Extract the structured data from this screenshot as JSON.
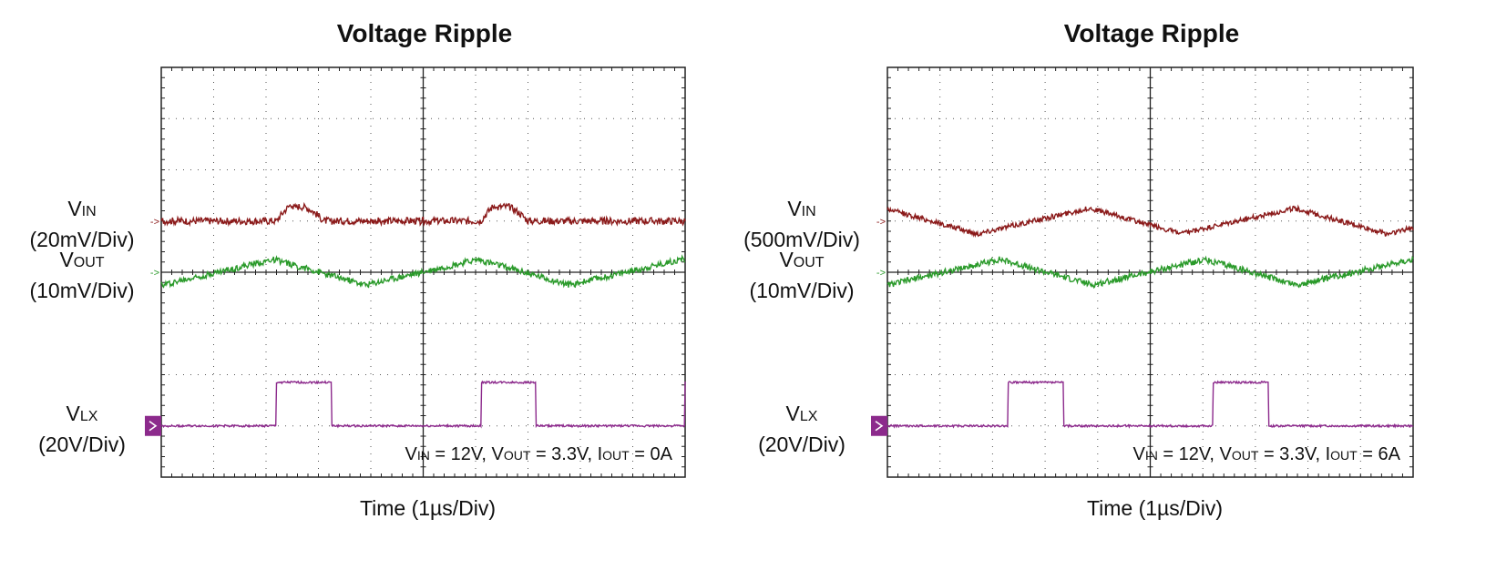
{
  "chart_data": [
    {
      "type": "line",
      "title": "Voltage Ripple",
      "xlabel": "Time (1µs/Div)",
      "divisions": {
        "x": 10,
        "y": 8
      },
      "annotation": {
        "parts": [
          {
            "t": "V",
            "sub": "IN",
            "rest": " = 12V, "
          },
          {
            "t": "V",
            "sub": "OUT",
            "rest": " = 3.3V, "
          },
          {
            "t": "I",
            "sub": "OUT",
            "rest": " = 0A"
          }
        ]
      },
      "channels": [
        {
          "name": "V",
          "sub": "IN",
          "scale": "(20mV/Div)",
          "color": "#8b1a1a",
          "marker_style": "arrow",
          "ref_div": 5.0,
          "shape": "bumps",
          "period_div": 3.9,
          "phase_div": 2.2,
          "amp_div": 0.35,
          "noise": 0.07
        },
        {
          "name": "V",
          "sub": "OUT",
          "scale": "(10mV/Div)",
          "color": "#2a9a2a",
          "marker_style": "arrow",
          "ref_div": 4.0,
          "shape": "tri",
          "period_div": 3.9,
          "phase_div": 0.0,
          "amp_div": 0.25,
          "noise": 0.06
        },
        {
          "name": "V",
          "sub": "LX",
          "scale": "(20V/Div)",
          "color": "#8c2a8c",
          "marker_style": "box",
          "ref_div": 1.0,
          "shape": "pulse",
          "period_div": 3.9,
          "phase_div": 2.2,
          "pulse_width_div": 1.05,
          "amp_div": 0.85,
          "noise": 0.02
        }
      ]
    },
    {
      "type": "line",
      "title": "Voltage Ripple",
      "xlabel": "Time (1µs/Div)",
      "divisions": {
        "x": 10,
        "y": 8
      },
      "annotation": {
        "parts": [
          {
            "t": "V",
            "sub": "IN",
            "rest": " = 12V, "
          },
          {
            "t": "V",
            "sub": "OUT",
            "rest": " = 3.3V, "
          },
          {
            "t": "I",
            "sub": "OUT",
            "rest": " = 6A"
          }
        ]
      },
      "channels": [
        {
          "name": "V",
          "sub": "IN",
          "scale": "(500mV/Div)",
          "color": "#8b1a1a",
          "marker_style": "arrow",
          "ref_div": 5.0,
          "shape": "tri",
          "period_div": 3.9,
          "phase_div": 1.7,
          "amp_div": 0.25,
          "noise": 0.05
        },
        {
          "name": "V",
          "sub": "OUT",
          "scale": "(10mV/Div)",
          "color": "#2a9a2a",
          "marker_style": "arrow",
          "ref_div": 4.0,
          "shape": "tri",
          "period_div": 3.9,
          "phase_div": 0.0,
          "amp_div": 0.25,
          "noise": 0.06
        },
        {
          "name": "V",
          "sub": "LX",
          "scale": "(20V/Div)",
          "color": "#8c2a8c",
          "marker_style": "box",
          "ref_div": 1.0,
          "shape": "pulse",
          "period_div": 3.9,
          "phase_div": 2.3,
          "pulse_width_div": 1.05,
          "amp_div": 0.85,
          "noise": 0.02
        }
      ]
    }
  ]
}
